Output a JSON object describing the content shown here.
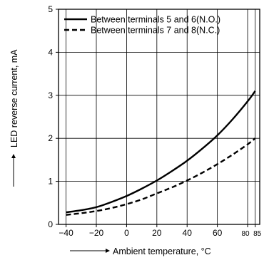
{
  "chart_data": {
    "type": "line",
    "xlabel": "Ambient temperature, °C",
    "ylabel": "LED reverse current, mA",
    "xlim": [
      -45,
      88
    ],
    "ylim": [
      0,
      5
    ],
    "x_ticks": [
      -40,
      -20,
      0,
      20,
      40,
      60,
      80,
      85
    ],
    "x_tick_labels": [
      "−40",
      "−20",
      "0",
      "20",
      "40",
      "60",
      "80",
      "85"
    ],
    "y_ticks": [
      0,
      1,
      2,
      3,
      4,
      5
    ],
    "y_tick_labels": [
      "0",
      "1",
      "2",
      "3",
      "4",
      "5"
    ],
    "grid": true,
    "legend_position": "top-left",
    "series": [
      {
        "name": "Between terminals 5 and 6(N.O.)",
        "style": "solid",
        "x": [
          -40,
          -30,
          -20,
          -10,
          0,
          10,
          20,
          30,
          40,
          50,
          60,
          70,
          80,
          85
        ],
        "y": [
          0.28,
          0.33,
          0.4,
          0.52,
          0.66,
          0.83,
          1.02,
          1.24,
          1.48,
          1.76,
          2.07,
          2.44,
          2.86,
          3.1
        ]
      },
      {
        "name": "Between terminals 7 and 8(N.C.)",
        "style": "dashed",
        "x": [
          -40,
          -30,
          -20,
          -10,
          0,
          10,
          20,
          30,
          40,
          50,
          60,
          70,
          80,
          85
        ],
        "y": [
          0.22,
          0.26,
          0.31,
          0.38,
          0.47,
          0.58,
          0.72,
          0.86,
          1.02,
          1.2,
          1.4,
          1.62,
          1.86,
          2.0
        ]
      }
    ]
  }
}
